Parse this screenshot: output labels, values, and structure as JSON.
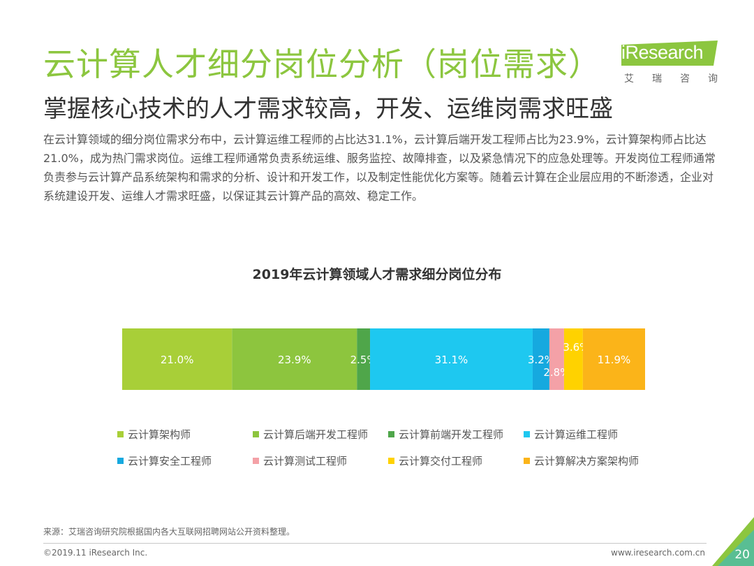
{
  "header": {
    "title": "云计算人才细分岗位分析（岗位需求）",
    "subtitle": "掌握核心技术的人才需求较高，开发、运维岗需求旺盛",
    "body": "在云计算领域的细分岗位需求分布中，云计算运维工程师的占比达31.1%，云计算后端开发工程师占比为23.9%，云计算架构师占比达21.0%，成为热门需求岗位。运维工程师通常负责系统运维、服务监控、故障排查，以及紧急情况下的应急处理等。开发岗位工程师通常负责参与云计算产品系统架构和需求的分析、设计和开发工作，以及制定性能优化方案等。随着云计算在企业层应用的不断渗透，企业对系统建设开发、运维人才需求旺盛，以保证其云计算产品的高效、稳定工作。"
  },
  "logo": {
    "text": "iResearch",
    "chars": [
      "艾",
      "瑞",
      "咨",
      "询"
    ],
    "banner_color": "#8cc63f"
  },
  "chart_data": {
    "type": "bar",
    "orientation": "horizontal",
    "stacked": true,
    "title": "2019年云计算领域人才需求细分岗位分布",
    "unit": "%",
    "xlim": [
      0,
      100
    ],
    "series": [
      {
        "name": "云计算架构师",
        "value": 21.0,
        "label": "21.0%",
        "color": "#a8cf38"
      },
      {
        "name": "云计算后端开发工程师",
        "value": 23.9,
        "label": "23.9%",
        "color": "#8dc53e"
      },
      {
        "name": "云计算前端开发工程师",
        "value": 2.5,
        "label": "2.5%",
        "color": "#4fa64a"
      },
      {
        "name": "云计算运维工程师",
        "value": 31.1,
        "label": "31.1%",
        "color": "#1ec8f0"
      },
      {
        "name": "云计算安全工程师",
        "value": 3.2,
        "label": "3.2%",
        "color": "#16a9df"
      },
      {
        "name": "云计算测试工程师",
        "value": 2.8,
        "label": "2.8%",
        "color": "#f4a1a7"
      },
      {
        "name": "云计算交付工程师",
        "value": 3.6,
        "label": "3.6%",
        "color": "#ffd200"
      },
      {
        "name": "云计算解决方案架构师",
        "value": 11.9,
        "label": "11.9%",
        "color": "#fbb419"
      }
    ],
    "legend_position": "bottom",
    "grid": false
  },
  "footer": {
    "source": "来源：艾瑞咨询研究院根据国内各大互联网招聘网站公开资料整理。",
    "copyright": "©2019.11 iResearch Inc.",
    "website": "www.iresearch.com.cn",
    "page_number": "20"
  }
}
